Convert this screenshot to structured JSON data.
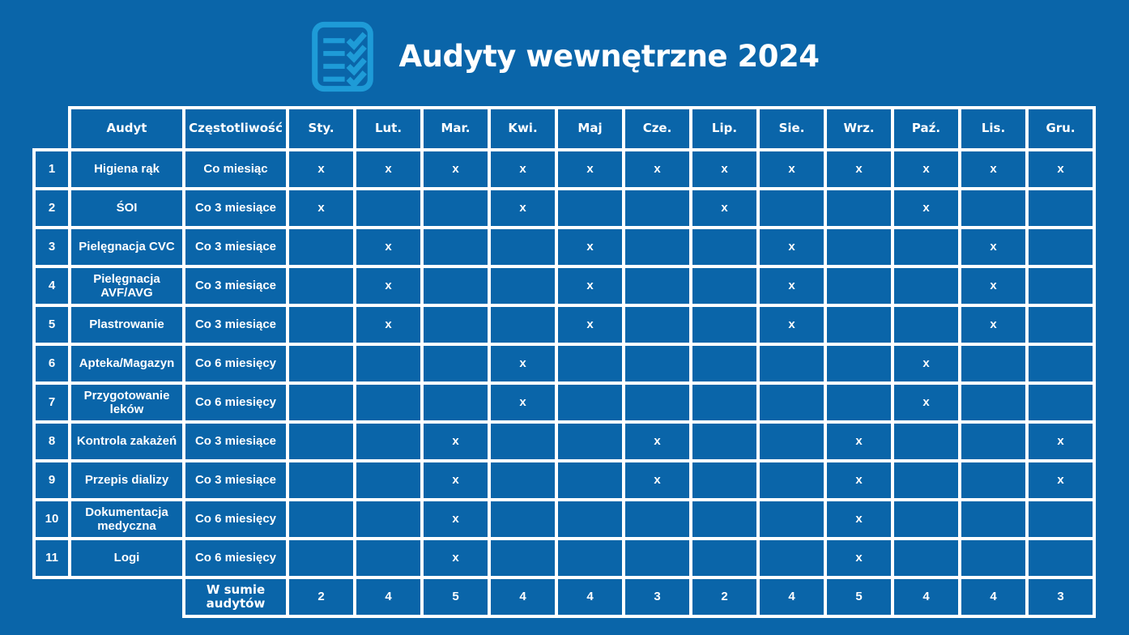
{
  "title": "Audyty wewnętrzne 2024",
  "colors": {
    "background": "#0A65A9",
    "grid": "#FFFFFF",
    "text": "#FFFFFF",
    "icon_accent": "#1E9BD7"
  },
  "table": {
    "header": {
      "audit": "Audyt",
      "frequency": "Częstotliwość",
      "months": [
        "Sty.",
        "Lut.",
        "Mar.",
        "Kwi.",
        "Maj",
        "Cze.",
        "Lip.",
        "Sie.",
        "Wrz.",
        "Paź.",
        "Lis.",
        "Gru."
      ]
    },
    "mark": "x",
    "rows": [
      {
        "no": "1",
        "audit": "Higiena rąk",
        "frequency": "Co miesiąc",
        "marks": [
          "x",
          "x",
          "x",
          "x",
          "x",
          "x",
          "x",
          "x",
          "x",
          "x",
          "x",
          "x"
        ]
      },
      {
        "no": "2",
        "audit": "ŚOI",
        "frequency": "Co 3 miesiące",
        "marks": [
          "x",
          "",
          "",
          "x",
          "",
          "",
          "x",
          "",
          "",
          "x",
          "",
          ""
        ]
      },
      {
        "no": "3",
        "audit": "Pielęgnacja CVC",
        "frequency": "Co 3 miesiące",
        "marks": [
          "",
          "x",
          "",
          "",
          "x",
          "",
          "",
          "x",
          "",
          "",
          "x",
          ""
        ]
      },
      {
        "no": "4",
        "audit": "Pielęgnacja AVF/AVG",
        "frequency": "Co 3 miesiące",
        "marks": [
          "",
          "x",
          "",
          "",
          "x",
          "",
          "",
          "x",
          "",
          "",
          "x",
          ""
        ]
      },
      {
        "no": "5",
        "audit": "Plastrowanie",
        "frequency": "Co 3 miesiące",
        "marks": [
          "",
          "x",
          "",
          "",
          "x",
          "",
          "",
          "x",
          "",
          "",
          "x",
          ""
        ]
      },
      {
        "no": "6",
        "audit": "Apteka/Magazyn",
        "frequency": "Co 6 miesięcy",
        "marks": [
          "",
          "",
          "",
          "x",
          "",
          "",
          "",
          "",
          "",
          "x",
          "",
          ""
        ]
      },
      {
        "no": "7",
        "audit": "Przygotowanie leków",
        "frequency": "Co 6 miesięcy",
        "marks": [
          "",
          "",
          "",
          "x",
          "",
          "",
          "",
          "",
          "",
          "x",
          "",
          ""
        ]
      },
      {
        "no": "8",
        "audit": "Kontrola zakażeń",
        "frequency": "Co 3 miesiące",
        "marks": [
          "",
          "",
          "x",
          "",
          "",
          "x",
          "",
          "",
          "x",
          "",
          "",
          "x"
        ]
      },
      {
        "no": "9",
        "audit": "Przepis dializy",
        "frequency": "Co 3 miesiące",
        "marks": [
          "",
          "",
          "x",
          "",
          "",
          "x",
          "",
          "",
          "x",
          "",
          "",
          "x"
        ]
      },
      {
        "no": "10",
        "audit": "Dokumentacja medyczna",
        "frequency": "Co 6 miesięcy",
        "marks": [
          "",
          "",
          "x",
          "",
          "",
          "",
          "",
          "",
          "x",
          "",
          "",
          ""
        ]
      },
      {
        "no": "11",
        "audit": "Logi",
        "frequency": "Co 6 miesięcy",
        "marks": [
          "",
          "",
          "x",
          "",
          "",
          "",
          "",
          "",
          "x",
          "",
          "",
          ""
        ]
      }
    ],
    "summary": {
      "label": "W sumie audytów",
      "totals": [
        "2",
        "4",
        "5",
        "4",
        "4",
        "3",
        "2",
        "4",
        "5",
        "4",
        "4",
        "3"
      ]
    }
  }
}
